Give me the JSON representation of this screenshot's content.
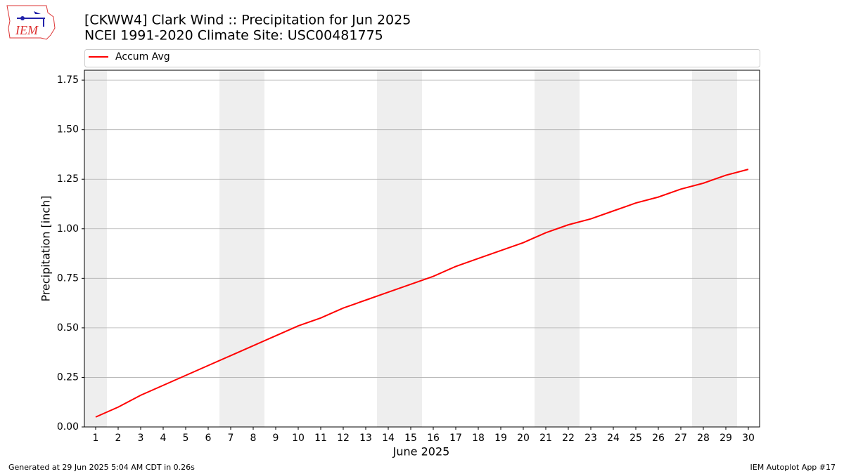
{
  "logo": "IEM",
  "footer": {
    "left": "Generated at 29 Jun 2025 5:04 AM CDT in 0.26s",
    "right": "IEM Autoplot App #17"
  },
  "chart_data": {
    "type": "line",
    "title": "[CKWW4] Clark Wind :: Precipitation for Jun 2025",
    "subtitle": "NCEI 1991-2020 Climate Site: USC00481775",
    "xlabel": "June 2025",
    "ylabel": "Precipitation [inch]",
    "x": [
      1,
      2,
      3,
      4,
      5,
      6,
      7,
      8,
      9,
      10,
      11,
      12,
      13,
      14,
      15,
      16,
      17,
      18,
      19,
      20,
      21,
      22,
      23,
      24,
      25,
      26,
      27,
      28,
      29,
      30
    ],
    "series": [
      {
        "name": "Accum Avg",
        "color": "#ff0000",
        "values": [
          0.05,
          0.1,
          0.16,
          0.21,
          0.26,
          0.31,
          0.36,
          0.41,
          0.46,
          0.51,
          0.55,
          0.6,
          0.64,
          0.68,
          0.72,
          0.76,
          0.81,
          0.85,
          0.89,
          0.93,
          0.98,
          1.02,
          1.05,
          1.09,
          1.13,
          1.16,
          1.2,
          1.23,
          1.27,
          1.3
        ]
      }
    ],
    "shaded_days": [
      1,
      7,
      8,
      14,
      15,
      21,
      22,
      28,
      29
    ],
    "shade_color": "#eeeeee",
    "xlim": [
      0.5,
      30.5
    ],
    "xticks": [
      1,
      2,
      3,
      4,
      5,
      6,
      7,
      8,
      9,
      10,
      11,
      12,
      13,
      14,
      15,
      16,
      17,
      18,
      19,
      20,
      21,
      22,
      23,
      24,
      25,
      26,
      27,
      28,
      29,
      30
    ],
    "ylim": [
      0,
      1.8
    ],
    "yticks": [
      {
        "value": 0,
        "label": "0.00"
      },
      {
        "value": 0.25,
        "label": "0.25"
      },
      {
        "value": 0.5,
        "label": "0.50"
      },
      {
        "value": 0.75,
        "label": "0.75"
      },
      {
        "value": 1,
        "label": "1.00"
      },
      {
        "value": 1.25,
        "label": "1.25"
      },
      {
        "value": 1.5,
        "label": "1.50"
      },
      {
        "value": 1.75,
        "label": "1.75"
      }
    ],
    "grid": "y",
    "legend": "top"
  }
}
